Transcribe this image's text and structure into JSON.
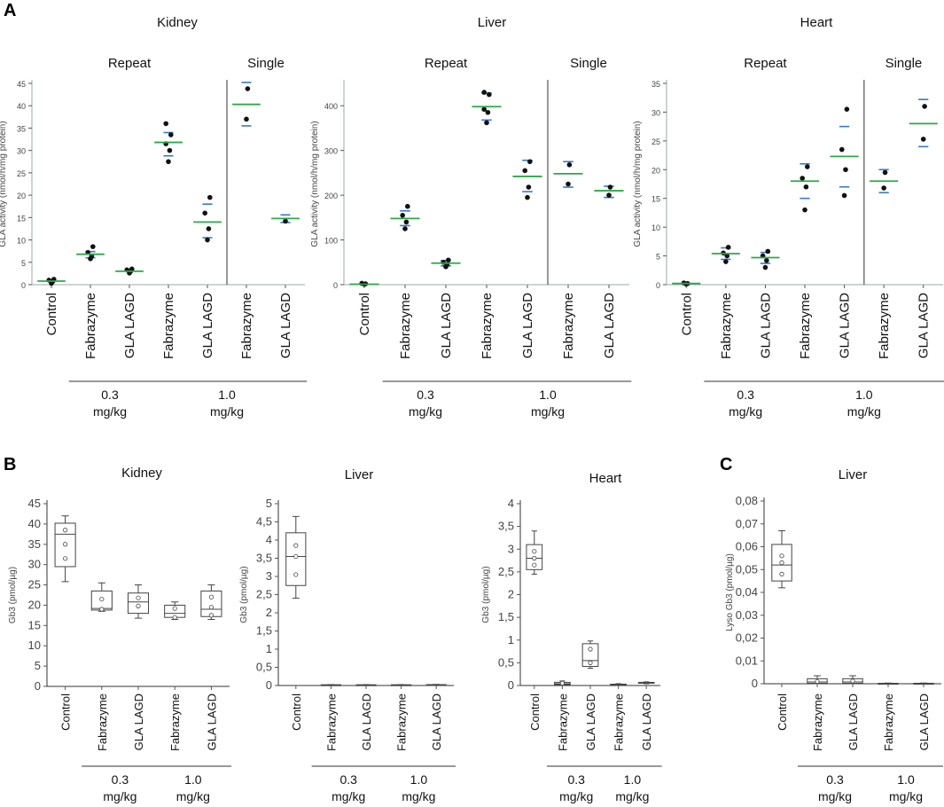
{
  "panel_labels": [
    "A",
    "B",
    "C"
  ],
  "chart_data": [
    {
      "id": "A-kidney",
      "type": "scatter",
      "title": "Kidney",
      "ylabel": "GLA activity (nmol/h/mg protein)",
      "ylim": [
        0,
        45
      ],
      "yticks": [
        0,
        5,
        10,
        15,
        20,
        25,
        30,
        35,
        40,
        45
      ],
      "tick_labels": [
        "0",
        "5",
        "10",
        "15",
        "20",
        "25",
        "30",
        "35",
        "40",
        "45"
      ],
      "categories": [
        "Control",
        "Fabrazyme",
        "GLA LAGD",
        "Fabrazyme",
        "GLA LAGD",
        "Fabrazyme",
        "GLA LAGD"
      ],
      "sections": [
        {
          "label": "Repeat",
          "from": 0,
          "to": 4
        },
        {
          "label": "Single",
          "from": 5,
          "to": 6
        }
      ],
      "divider_after": 4,
      "dose_groups": [
        {
          "dose": "0.3",
          "unit": "mg/kg",
          "from": 1,
          "to": 2
        },
        {
          "dose": "1.0",
          "unit": "mg/kg",
          "from": 3,
          "to": 6
        }
      ],
      "groups": [
        {
          "mean": 0.8,
          "upper": null,
          "lower": null,
          "points": [
            0.3,
            0.7,
            1.0,
            1.2
          ]
        },
        {
          "mean": 6.8,
          "upper": 7.4,
          "lower": 6.0,
          "points": [
            5.8,
            6.4,
            7.2,
            8.5
          ]
        },
        {
          "mean": 3.0,
          "upper": null,
          "lower": null,
          "points": [
            2.6,
            3.0,
            3.3,
            3.5
          ]
        },
        {
          "mean": 31.8,
          "upper": 34.0,
          "lower": 28.8,
          "points": [
            27.5,
            30.0,
            31.5,
            33.5,
            36.0
          ]
        },
        {
          "mean": 14.0,
          "upper": 18.0,
          "lower": 10.5,
          "points": [
            10.0,
            12.5,
            16.0,
            19.5
          ]
        },
        {
          "mean": 40.3,
          "upper": 45.2,
          "lower": 35.5,
          "points": [
            37.0,
            43.8
          ]
        },
        {
          "mean": 14.8,
          "upper": 15.6,
          "lower": 13.9,
          "points": [
            14.2
          ]
        }
      ]
    },
    {
      "id": "A-liver",
      "type": "scatter",
      "title": "Liver",
      "ylabel": "GLA activity (nmol/h/mg protein)",
      "ylim": [
        0,
        450
      ],
      "yticks": [
        0,
        100,
        200,
        300,
        400
      ],
      "tick_labels": [
        "0",
        "100",
        "200",
        "300",
        "400"
      ],
      "categories": [
        "Control",
        "Fabrazyme",
        "GLA LAGD",
        "Fabrazyme",
        "GLA LAGD",
        "Fabrazyme",
        "GLA LAGD"
      ],
      "sections": [
        {
          "label": "Repeat",
          "from": 0,
          "to": 4
        },
        {
          "label": "Single",
          "from": 5,
          "to": 6
        }
      ],
      "divider_after": 4,
      "dose_groups": [
        {
          "dose": "0.3",
          "unit": "mg/kg",
          "from": 1,
          "to": 2
        },
        {
          "dose": "1.0",
          "unit": "mg/kg",
          "from": 3,
          "to": 6
        }
      ],
      "groups": [
        {
          "mean": 1,
          "upper": null,
          "lower": null,
          "points": [
            1,
            2,
            3
          ]
        },
        {
          "mean": 148,
          "upper": 165,
          "lower": 132,
          "points": [
            125,
            140,
            155,
            175
          ]
        },
        {
          "mean": 48,
          "upper": 54,
          "lower": 42,
          "points": [
            40,
            45,
            50,
            55
          ]
        },
        {
          "mean": 398,
          "upper": 428,
          "lower": 368,
          "points": [
            362,
            385,
            392,
            425,
            430
          ]
        },
        {
          "mean": 242,
          "upper": 278,
          "lower": 208,
          "points": [
            195,
            218,
            255,
            275
          ]
        },
        {
          "mean": 248,
          "upper": 275,
          "lower": 218,
          "points": [
            225,
            268
          ]
        },
        {
          "mean": 210,
          "upper": 220,
          "lower": 195,
          "points": [
            200,
            218
          ]
        }
      ]
    },
    {
      "id": "A-heart",
      "type": "scatter",
      "title": "Heart",
      "ylabel": "GLA activity (nmol/h/mg protein)",
      "ylim": [
        0,
        35
      ],
      "yticks": [
        0,
        5,
        10,
        15,
        20,
        25,
        30,
        35
      ],
      "tick_labels": [
        "0",
        "5",
        "10",
        "15",
        "20",
        "25",
        "30",
        "35"
      ],
      "categories": [
        "Control",
        "Fabrazyme",
        "GLA LAGD",
        "Fabrazyme",
        "GLA LAGD",
        "Fabrazyme",
        "GLA LAGD"
      ],
      "sections": [
        {
          "label": "Repeat",
          "from": 0,
          "to": 4
        },
        {
          "label": "Single",
          "from": 5,
          "to": 6
        }
      ],
      "divider_after": 4,
      "dose_groups": [
        {
          "dose": "0.3",
          "unit": "mg/kg",
          "from": 1,
          "to": 2
        },
        {
          "dose": "1.0",
          "unit": "mg/kg",
          "from": 3,
          "to": 6
        }
      ],
      "groups": [
        {
          "mean": 0.2,
          "upper": null,
          "lower": null,
          "points": [
            0.1,
            0.2,
            0.3
          ]
        },
        {
          "mean": 5.4,
          "upper": 6.4,
          "lower": 4.4,
          "points": [
            4.0,
            5.0,
            5.5,
            6.5
          ]
        },
        {
          "mean": 4.7,
          "upper": 5.6,
          "lower": 3.7,
          "points": [
            3.0,
            4.2,
            5.0,
            5.8
          ]
        },
        {
          "mean": 18.0,
          "upper": 21.0,
          "lower": 15.0,
          "points": [
            13.0,
            17.0,
            18.5,
            20.5
          ]
        },
        {
          "mean": 22.3,
          "upper": 27.5,
          "lower": 17.0,
          "points": [
            15.5,
            20.0,
            23.5,
            30.5
          ]
        },
        {
          "mean": 18.0,
          "upper": 20.0,
          "lower": 16.0,
          "points": [
            16.8,
            19.5
          ]
        },
        {
          "mean": 28.0,
          "upper": 32.2,
          "lower": 24.0,
          "points": [
            25.3,
            31.0
          ]
        }
      ]
    },
    {
      "id": "B-kidney",
      "type": "box",
      "title": "Kidney",
      "ylabel": "Gb3 (pmol/µg)",
      "ylim": [
        0,
        45
      ],
      "yticks": [
        0,
        5,
        10,
        15,
        20,
        25,
        30,
        35,
        40,
        45
      ],
      "tick_labels": [
        "0",
        "5",
        "10",
        "15",
        "20",
        "25",
        "30",
        "35",
        "40",
        "45"
      ],
      "categories": [
        "Control",
        "Fabrazyme",
        "GLA LAGD",
        "Fabrazyme",
        "GLA LAGD"
      ],
      "dose_groups": [
        {
          "dose": "0.3",
          "unit": "mg/kg",
          "from": 1,
          "to": 2
        },
        {
          "dose": "1.0",
          "unit": "mg/kg",
          "from": 3,
          "to": 4
        }
      ],
      "groups": [
        {
          "min": 25.8,
          "q1": 29.5,
          "median": 37.5,
          "q3": 40.2,
          "max": 42.0,
          "points": [
            31.5,
            35.0,
            38.5
          ]
        },
        {
          "min": 18.5,
          "q1": 18.8,
          "median": 19.2,
          "q3": 23.5,
          "max": 25.5,
          "points": [
            19.0,
            21.5
          ]
        },
        {
          "min": 16.8,
          "q1": 18.0,
          "median": 20.8,
          "q3": 23.0,
          "max": 25.0,
          "points": [
            19.8,
            21.8
          ]
        },
        {
          "min": 16.5,
          "q1": 17.0,
          "median": 18.0,
          "q3": 20.0,
          "max": 20.8,
          "points": [
            17.0,
            19.2
          ]
        },
        {
          "min": 16.5,
          "q1": 17.2,
          "median": 19.0,
          "q3": 23.5,
          "max": 25.0,
          "points": [
            17.5,
            19.5,
            22.0
          ]
        }
      ]
    },
    {
      "id": "B-liver",
      "type": "box",
      "title": "Liver",
      "ylabel": "Gb3 (pmol/µg)",
      "ylim": [
        0,
        5
      ],
      "yticks": [
        0,
        0.5,
        1,
        1.5,
        2,
        2.5,
        3,
        3.5,
        4,
        4.5,
        5
      ],
      "tick_labels": [
        "0",
        "0,5",
        "1",
        "1,5",
        "2",
        "2,5",
        "3",
        "3,5",
        "4",
        "4,5",
        "5"
      ],
      "categories": [
        "Control",
        "Fabrazyme",
        "GLA LAGD",
        "Fabrazyme",
        "GLA LAGD"
      ],
      "dose_groups": [
        {
          "dose": "0.3",
          "unit": "mg/kg",
          "from": 1,
          "to": 2
        },
        {
          "dose": "1.0",
          "unit": "mg/kg",
          "from": 3,
          "to": 4
        }
      ],
      "groups": [
        {
          "min": 2.4,
          "q1": 2.75,
          "median": 3.55,
          "q3": 4.2,
          "max": 4.65,
          "points": [
            3.05,
            3.55,
            3.85
          ]
        },
        {
          "min": 0.01,
          "q1": 0.01,
          "median": 0.015,
          "q3": 0.02,
          "max": 0.025,
          "points": []
        },
        {
          "min": 0.01,
          "q1": 0.01,
          "median": 0.015,
          "q3": 0.02,
          "max": 0.025,
          "points": []
        },
        {
          "min": 0.01,
          "q1": 0.01,
          "median": 0.015,
          "q3": 0.02,
          "max": 0.025,
          "points": []
        },
        {
          "min": 0.01,
          "q1": 0.01,
          "median": 0.015,
          "q3": 0.025,
          "max": 0.03,
          "points": []
        }
      ]
    },
    {
      "id": "B-heart",
      "type": "box",
      "title": "Heart",
      "ylabel": "Gb3 (pmol/µg)",
      "ylim": [
        0,
        4
      ],
      "yticks": [
        0,
        0.5,
        1,
        1.5,
        2,
        2.5,
        3,
        3.5,
        4
      ],
      "tick_labels": [
        "0",
        "0,5",
        "1",
        "1,5",
        "2",
        "2,5",
        "3",
        "3,5",
        "4"
      ],
      "categories": [
        "Control",
        "Fabrazyme",
        "GLA LAGD",
        "Fabrazyme",
        "GLA LAGD"
      ],
      "dose_groups": [
        {
          "dose": "0.3",
          "unit": "mg/kg",
          "from": 1,
          "to": 2
        },
        {
          "dose": "1.0",
          "unit": "mg/kg",
          "from": 3,
          "to": 4
        }
      ],
      "groups": [
        {
          "min": 2.45,
          "q1": 2.55,
          "median": 2.8,
          "q3": 3.1,
          "max": 3.4,
          "points": [
            2.65,
            2.8,
            2.95
          ]
        },
        {
          "min": 0.0,
          "q1": 0.02,
          "median": 0.04,
          "q3": 0.07,
          "max": 0.1,
          "points": [
            0.05
          ]
        },
        {
          "min": 0.38,
          "q1": 0.42,
          "median": 0.55,
          "q3": 0.92,
          "max": 0.98,
          "points": [
            0.5,
            0.8
          ]
        },
        {
          "min": 0.0,
          "q1": 0.01,
          "median": 0.02,
          "q3": 0.03,
          "max": 0.04,
          "points": []
        },
        {
          "min": 0.04,
          "q1": 0.05,
          "median": 0.06,
          "q3": 0.07,
          "max": 0.08,
          "points": []
        }
      ]
    },
    {
      "id": "C-liver",
      "type": "box",
      "title": "Liver",
      "ylabel": "Lyso Gb3 (pmol/µg)",
      "ylim": [
        0,
        0.08
      ],
      "yticks": [
        0,
        0.01,
        0.02,
        0.03,
        0.04,
        0.05,
        0.06,
        0.07,
        0.08
      ],
      "tick_labels": [
        "0",
        "0,01",
        "0,02",
        "0,03",
        "0,04",
        "0,05",
        "0,06",
        "0,07",
        "0,08"
      ],
      "categories": [
        "Control",
        "Fabrazyme",
        "GLA LAGD",
        "Fabrazyme",
        "GLA LAGD"
      ],
      "dose_groups": [
        {
          "dose": "0.3",
          "unit": "mg/kg",
          "from": 1,
          "to": 2
        },
        {
          "dose": "1.0",
          "unit": "mg/kg",
          "from": 3,
          "to": 4
        }
      ],
      "groups": [
        {
          "min": 0.042,
          "q1": 0.045,
          "median": 0.052,
          "q3": 0.061,
          "max": 0.067,
          "points": [
            0.048,
            0.053,
            0.056
          ]
        },
        {
          "min": 0.0,
          "q1": 0.0002,
          "median": 0.0008,
          "q3": 0.0022,
          "max": 0.0035,
          "points": [
            0.001
          ]
        },
        {
          "min": 0.0,
          "q1": 0.0002,
          "median": 0.0008,
          "q3": 0.0022,
          "max": 0.0035,
          "points": [
            0.0012
          ]
        },
        {
          "min": 0.0,
          "q1": 0.0,
          "median": 0.0001,
          "q3": 0.0002,
          "max": 0.0003,
          "points": []
        },
        {
          "min": 0.0,
          "q1": 0.0,
          "median": 0.0001,
          "q3": 0.0002,
          "max": 0.0003,
          "points": []
        }
      ]
    }
  ]
}
